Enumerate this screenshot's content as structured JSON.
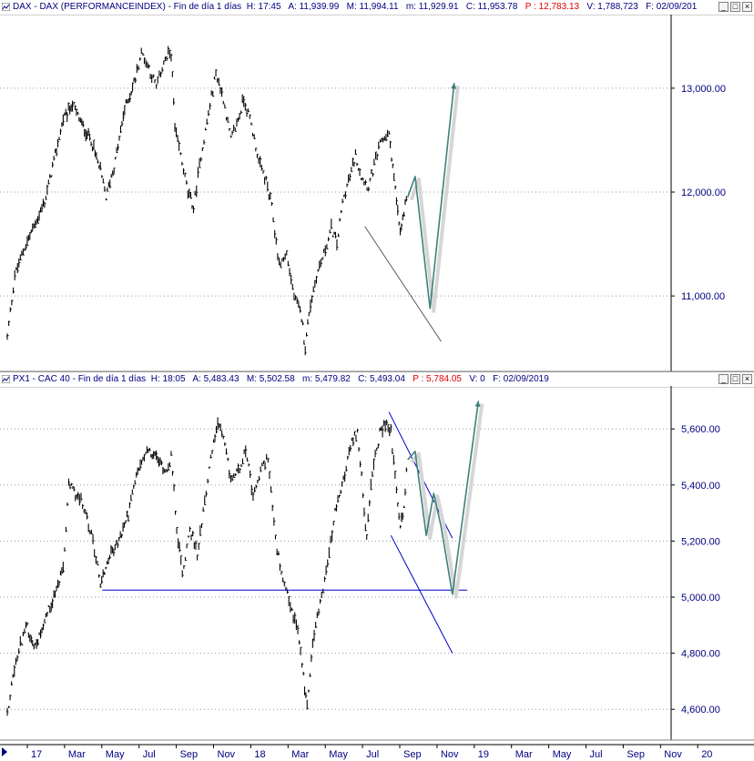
{
  "panes": [
    {
      "title_lead": "DAX - DAX (PERFORMANCEINDEX) - Fin de día 1 días",
      "H": "H: 17:45",
      "A": "A: 11,939.99",
      "M": "M: 11,994.11",
      "m": "m: 11,929.91",
      "C": "C: 11,953.78",
      "P": "P : 12,783.13",
      "V": "V: 1,788,723",
      "F": "F: 02/09/201"
    },
    {
      "title_lead": "PX1 - CAC 40 - Fin de día 1 días",
      "H": "H: 18:05",
      "A": "A: 5,483.43",
      "M": "M: 5,502.58",
      "m": "m: 5,479.82",
      "C": "C: 5,493.04",
      "P": "P : 5,784.05",
      "V": "V: 0",
      "F": "F: 02/09/2019"
    }
  ],
  "window_controls": [
    "_",
    "□",
    "×"
  ],
  "chart_data": [
    {
      "type": "line",
      "name": "DAX",
      "ylim": [
        10300,
        13700
      ],
      "yticks": [
        "13,000.00",
        "12,000.00",
        "11,000.00"
      ],
      "ytick_values": [
        13000,
        12000,
        11000
      ],
      "price_path": [
        [
          0,
          10600
        ],
        [
          0.4,
          11200
        ],
        [
          1.0,
          11500
        ],
        [
          1.5,
          11700
        ],
        [
          2.0,
          11900
        ],
        [
          2.5,
          12300
        ],
        [
          3.0,
          12700
        ],
        [
          3.5,
          12850
        ],
        [
          4.0,
          12650
        ],
        [
          4.5,
          12500
        ],
        [
          5.0,
          12200
        ],
        [
          5.3,
          11950
        ],
        [
          5.8,
          12300
        ],
        [
          6.3,
          12800
        ],
        [
          6.8,
          13050
        ],
        [
          7.2,
          13350
        ],
        [
          7.6,
          13200
        ],
        [
          8.0,
          13000
        ],
        [
          8.4,
          13250
        ],
        [
          8.8,
          13350
        ],
        [
          9.0,
          12600
        ],
        [
          9.3,
          12350
        ],
        [
          9.7,
          12000
        ],
        [
          10.0,
          11850
        ],
        [
          10.4,
          12350
        ],
        [
          10.8,
          12750
        ],
        [
          11.2,
          13150
        ],
        [
          11.6,
          12900
        ],
        [
          12.0,
          12500
        ],
        [
          12.4,
          12700
        ],
        [
          12.7,
          12900
        ],
        [
          13.1,
          12650
        ],
        [
          13.5,
          12300
        ],
        [
          13.9,
          12100
        ],
        [
          14.2,
          11850
        ],
        [
          14.6,
          11300
        ],
        [
          15.0,
          11400
        ],
        [
          15.4,
          11000
        ],
        [
          15.8,
          10800
        ],
        [
          16.0,
          10500
        ],
        [
          16.2,
          10850
        ],
        [
          16.6,
          11200
        ],
        [
          17.0,
          11400
        ],
        [
          17.4,
          11650
        ],
        [
          17.7,
          11500
        ],
        [
          18.0,
          11900
        ],
        [
          18.4,
          12150
        ],
        [
          18.7,
          12350
        ],
        [
          19.0,
          12150
        ],
        [
          19.4,
          12050
        ],
        [
          19.7,
          12250
        ],
        [
          20.1,
          12500
        ],
        [
          20.5,
          12550
        ],
        [
          20.7,
          12250
        ],
        [
          20.9,
          11900
        ],
        [
          21.1,
          11600
        ],
        [
          21.3,
          11800
        ],
        [
          21.5,
          11950
        ]
      ],
      "projection": [
        [
          21.5,
          11950
        ],
        [
          21.9,
          12150
        ],
        [
          22.7,
          10880
        ],
        [
          24.0,
          13050
        ]
      ],
      "trendline": [
        [
          19.2,
          11670
        ],
        [
          23.3,
          10560
        ]
      ]
    },
    {
      "type": "line",
      "name": "CAC 40",
      "ylim": [
        4500,
        5750
      ],
      "yticks": [
        "5,600.00",
        "5,400.00",
        "5,200.00",
        "5,000.00",
        "4,800.00",
        "4,600.00"
      ],
      "ytick_values": [
        5600,
        5400,
        5200,
        5000,
        4800,
        4600
      ],
      "price_path": [
        [
          0,
          4580
        ],
        [
          0.3,
          4720
        ],
        [
          0.7,
          4830
        ],
        [
          1.0,
          4900
        ],
        [
          1.5,
          4820
        ],
        [
          2.0,
          4920
        ],
        [
          2.5,
          5000
        ],
        [
          3.0,
          5100
        ],
        [
          3.3,
          5400
        ],
        [
          3.8,
          5360
        ],
        [
          4.2,
          5300
        ],
        [
          4.6,
          5200
        ],
        [
          5.0,
          5050
        ],
        [
          5.5,
          5150
        ],
        [
          6.0,
          5200
        ],
        [
          6.5,
          5300
        ],
        [
          7.0,
          5450
        ],
        [
          7.5,
          5520
        ],
        [
          8.0,
          5500
        ],
        [
          8.5,
          5450
        ],
        [
          8.8,
          5500
        ],
        [
          9.1,
          5250
        ],
        [
          9.4,
          5080
        ],
        [
          9.8,
          5250
        ],
        [
          10.2,
          5150
        ],
        [
          10.6,
          5350
        ],
        [
          11.0,
          5520
        ],
        [
          11.3,
          5620
        ],
        [
          11.6,
          5560
        ],
        [
          12.0,
          5420
        ],
        [
          12.4,
          5450
        ],
        [
          12.8,
          5530
        ],
        [
          13.2,
          5350
        ],
        [
          13.6,
          5450
        ],
        [
          14.0,
          5500
        ],
        [
          14.4,
          5200
        ],
        [
          14.8,
          5050
        ],
        [
          15.2,
          4970
        ],
        [
          15.6,
          4880
        ],
        [
          15.9,
          4720
        ],
        [
          16.1,
          4610
        ],
        [
          16.4,
          4850
        ],
        [
          16.8,
          4980
        ],
        [
          17.2,
          5120
        ],
        [
          17.6,
          5300
        ],
        [
          17.9,
          5380
        ],
        [
          18.2,
          5460
        ],
        [
          18.5,
          5550
        ],
        [
          18.8,
          5590
        ],
        [
          19.1,
          5380
        ],
        [
          19.3,
          5200
        ],
        [
          19.6,
          5450
        ],
        [
          20.0,
          5580
        ],
        [
          20.3,
          5620
        ],
        [
          20.6,
          5590
        ],
        [
          20.9,
          5380
        ],
        [
          21.1,
          5250
        ],
        [
          21.3,
          5330
        ],
        [
          21.5,
          5490
        ]
      ],
      "projection": [
        [
          21.5,
          5490
        ],
        [
          21.9,
          5520
        ],
        [
          22.5,
          5220
        ],
        [
          22.9,
          5370
        ],
        [
          23.3,
          5250
        ],
        [
          23.9,
          5010
        ],
        [
          25.3,
          5700
        ]
      ],
      "hline": [
        [
          5.1,
          5025
        ],
        [
          24.7,
          5025
        ]
      ],
      "channel_upper": [
        [
          20.5,
          5660
        ],
        [
          23.9,
          5210
        ]
      ],
      "channel_lower": [
        [
          20.6,
          5220
        ],
        [
          23.9,
          4800
        ]
      ]
    }
  ],
  "xaxis": {
    "ticks": [
      "17",
      "Mar",
      "May",
      "Jul",
      "Sep",
      "Nov",
      "18",
      "Mar",
      "May",
      "Jul",
      "Sep",
      "Nov",
      "19",
      "Mar",
      "May",
      "Jul",
      "Sep",
      "Nov",
      "20"
    ],
    "tick_months": [
      0,
      2,
      4,
      6,
      8,
      10,
      12,
      14,
      16,
      18,
      20,
      22,
      24,
      26,
      28,
      30,
      32,
      34,
      36
    ]
  },
  "colors": {
    "price": "#000000",
    "projection": "#3f7f7a",
    "trendline": "#606060",
    "guides": "#0000c8",
    "axis_text": "#000080",
    "grid": "#9a9a9a"
  }
}
